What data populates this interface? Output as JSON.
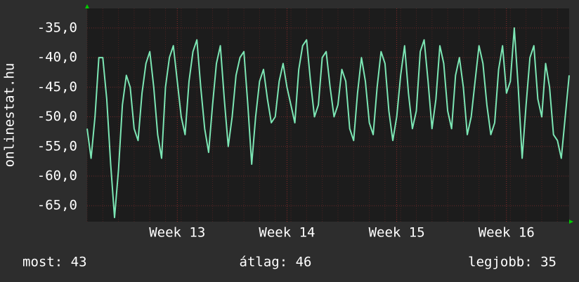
{
  "chart_data": {
    "type": "line",
    "y_label": "onlinestat.hu",
    "categories": [
      null,
      null,
      null,
      null,
      null,
      null,
      null,
      null,
      null,
      null,
      null,
      null,
      null,
      null,
      null,
      null,
      null,
      null,
      null,
      null,
      null,
      null,
      null,
      "Week 13",
      null,
      null,
      null,
      null,
      null,
      null,
      null,
      null,
      null,
      null,
      null,
      null,
      null,
      null,
      null,
      null,
      null,
      null,
      null,
      null,
      null,
      null,
      null,
      null,
      null,
      null,
      null,
      "Week 14",
      null,
      null,
      null,
      null,
      null,
      null,
      null,
      null,
      null,
      null,
      null,
      null,
      null,
      null,
      null,
      null,
      null,
      null,
      null,
      null,
      null,
      null,
      null,
      null,
      null,
      null,
      null,
      "Week 15",
      null,
      null,
      null,
      null,
      null,
      null,
      null,
      null,
      null,
      null,
      null,
      null,
      null,
      null,
      null,
      null,
      null,
      null,
      null,
      null,
      null,
      null,
      null,
      null,
      null,
      null,
      null,
      "Week 16",
      null,
      null,
      null,
      null,
      null,
      null,
      null,
      null,
      null,
      null,
      null,
      null,
      null,
      null,
      null,
      null
    ],
    "series": [
      {
        "color": "#7ce6b4",
        "values": [
          -52,
          -57,
          -50,
          -40,
          -40,
          -47,
          -58,
          -67,
          -59,
          -48,
          -43,
          -45,
          -52,
          -54,
          -46,
          -41,
          -39,
          -45,
          -53,
          -57,
          -45,
          -40,
          -38,
          -44,
          -50,
          -53,
          -44,
          -39,
          -37,
          -45,
          -52,
          -56,
          -48,
          -41,
          -38,
          -47,
          -55,
          -50,
          -43,
          -40,
          -39,
          -48,
          -58,
          -50,
          -44,
          -42,
          -47,
          -51,
          -50,
          -44,
          -41,
          -45,
          -48,
          -51,
          -42,
          -38,
          -37,
          -44,
          -50,
          -48,
          -40,
          -39,
          -45,
          -50,
          -48,
          -42,
          -44,
          -52,
          -54,
          -46,
          -40,
          -44,
          -51,
          -53,
          -45,
          -39,
          -41,
          -49,
          -54,
          -50,
          -43,
          -38,
          -46,
          -52,
          -49,
          -39,
          -37,
          -44,
          -52,
          -47,
          -38,
          -41,
          -49,
          -52,
          -43,
          -40,
          -45,
          -53,
          -50,
          -44,
          -38,
          -41,
          -48,
          -53,
          -51,
          -42,
          -38,
          -46,
          -44,
          -35,
          -45,
          -57,
          -48,
          -40,
          -38,
          -47,
          -50,
          -41,
          -45,
          -53,
          -54,
          -57,
          -50,
          -43
        ]
      }
    ],
    "ylim": [
      -67.7,
      -31.7
    ],
    "yticks": [
      {
        "value": -65,
        "label": "-65,0"
      },
      {
        "value": -60,
        "label": "-60,0"
      },
      {
        "value": -55,
        "label": "-55,0"
      },
      {
        "value": -50,
        "label": "-50,0"
      },
      {
        "value": -45,
        "label": "-45,0"
      },
      {
        "value": -40,
        "label": "-40,0"
      },
      {
        "value": -35,
        "label": "-35,0"
      }
    ],
    "grid": true,
    "footer": [
      "most: 43",
      "átlag: 46",
      "legjobb: 35"
    ]
  }
}
